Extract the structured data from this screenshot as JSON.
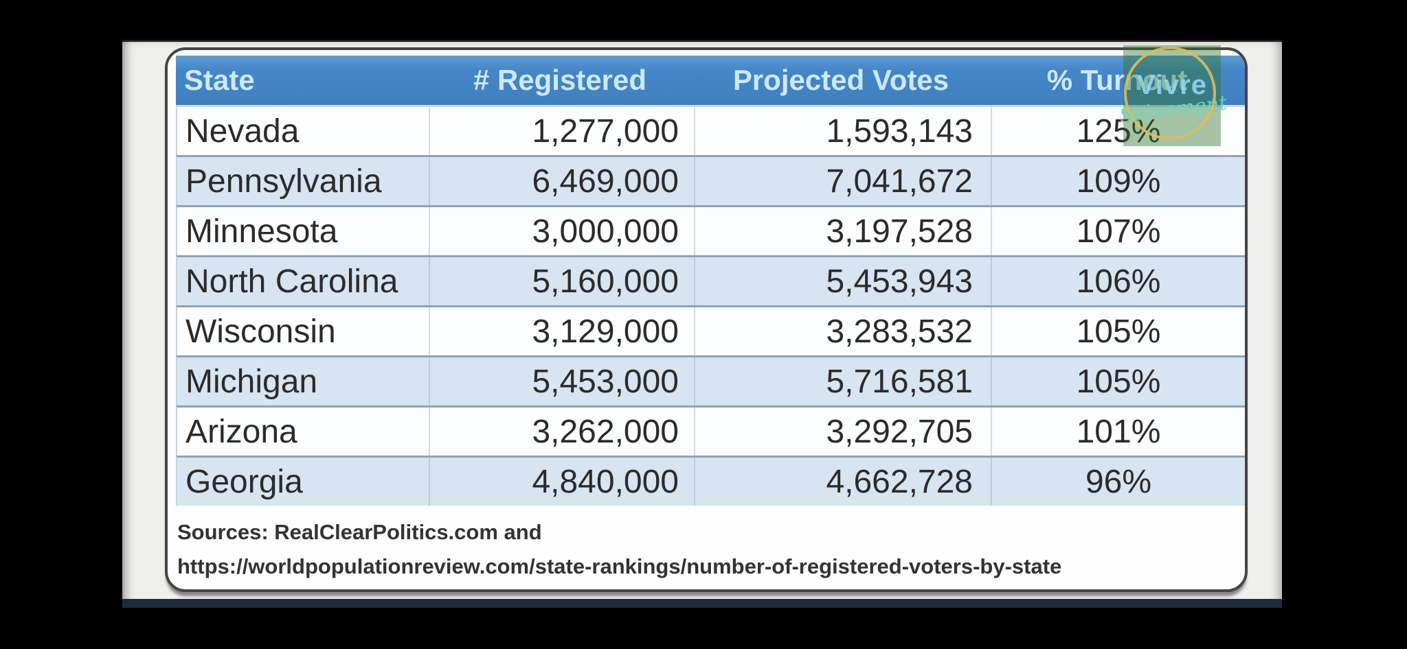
{
  "chart_data": {
    "type": "table",
    "columns": [
      "State",
      "# Registered",
      "Projected Votes",
      "% Turnout"
    ],
    "rows": [
      [
        "Nevada",
        "1,277,000",
        "1,593,143",
        "125%"
      ],
      [
        "Pennsylvania",
        "6,469,000",
        "7,041,672",
        "109%"
      ],
      [
        "Minnesota",
        "3,000,000",
        "3,197,528",
        "107%"
      ],
      [
        "North Carolina",
        "5,160,000",
        "5,453,943",
        "106%"
      ],
      [
        "Wisconsin",
        "3,129,000",
        "3,283,532",
        "105%"
      ],
      [
        "Michigan",
        "5,453,000",
        "5,716,581",
        "105%"
      ],
      [
        "Arizona",
        "3,262,000",
        "3,292,705",
        "101%"
      ],
      [
        "Georgia",
        "4,840,000",
        "4,662,728",
        "96%"
      ]
    ],
    "sources_line1": "Sources: RealClearPolitics.com and",
    "sources_line2": "https://worldpopulationreview.com/state-rankings/number-of-registered-voters-by-state",
    "layout_hints": "header row blue, alternating white and light-blue data rows, numbers right-aligned, turnout centered"
  },
  "watermark": {
    "line1": "Vivre",
    "line2": "Sainement"
  },
  "colors": {
    "header_blue": "#4486C7",
    "header_text": "#CDE8FA",
    "row_white": "#FBFDFE",
    "row_alt_blue": "#D7E4F1",
    "row_divider": "#8EA3B4",
    "body_text": "#2B2B2B",
    "card_border": "#454545",
    "stage_background": "#EFEFEC",
    "bottom_bar_navy": "#1D2B3C",
    "watermark_green": "rgba(45,115,35,0.42)",
    "watermark_ring_gold": "#DBBC62",
    "watermark_text_blue": "#93D8F3",
    "watermark_text_teal": "#6CD6C7"
  }
}
